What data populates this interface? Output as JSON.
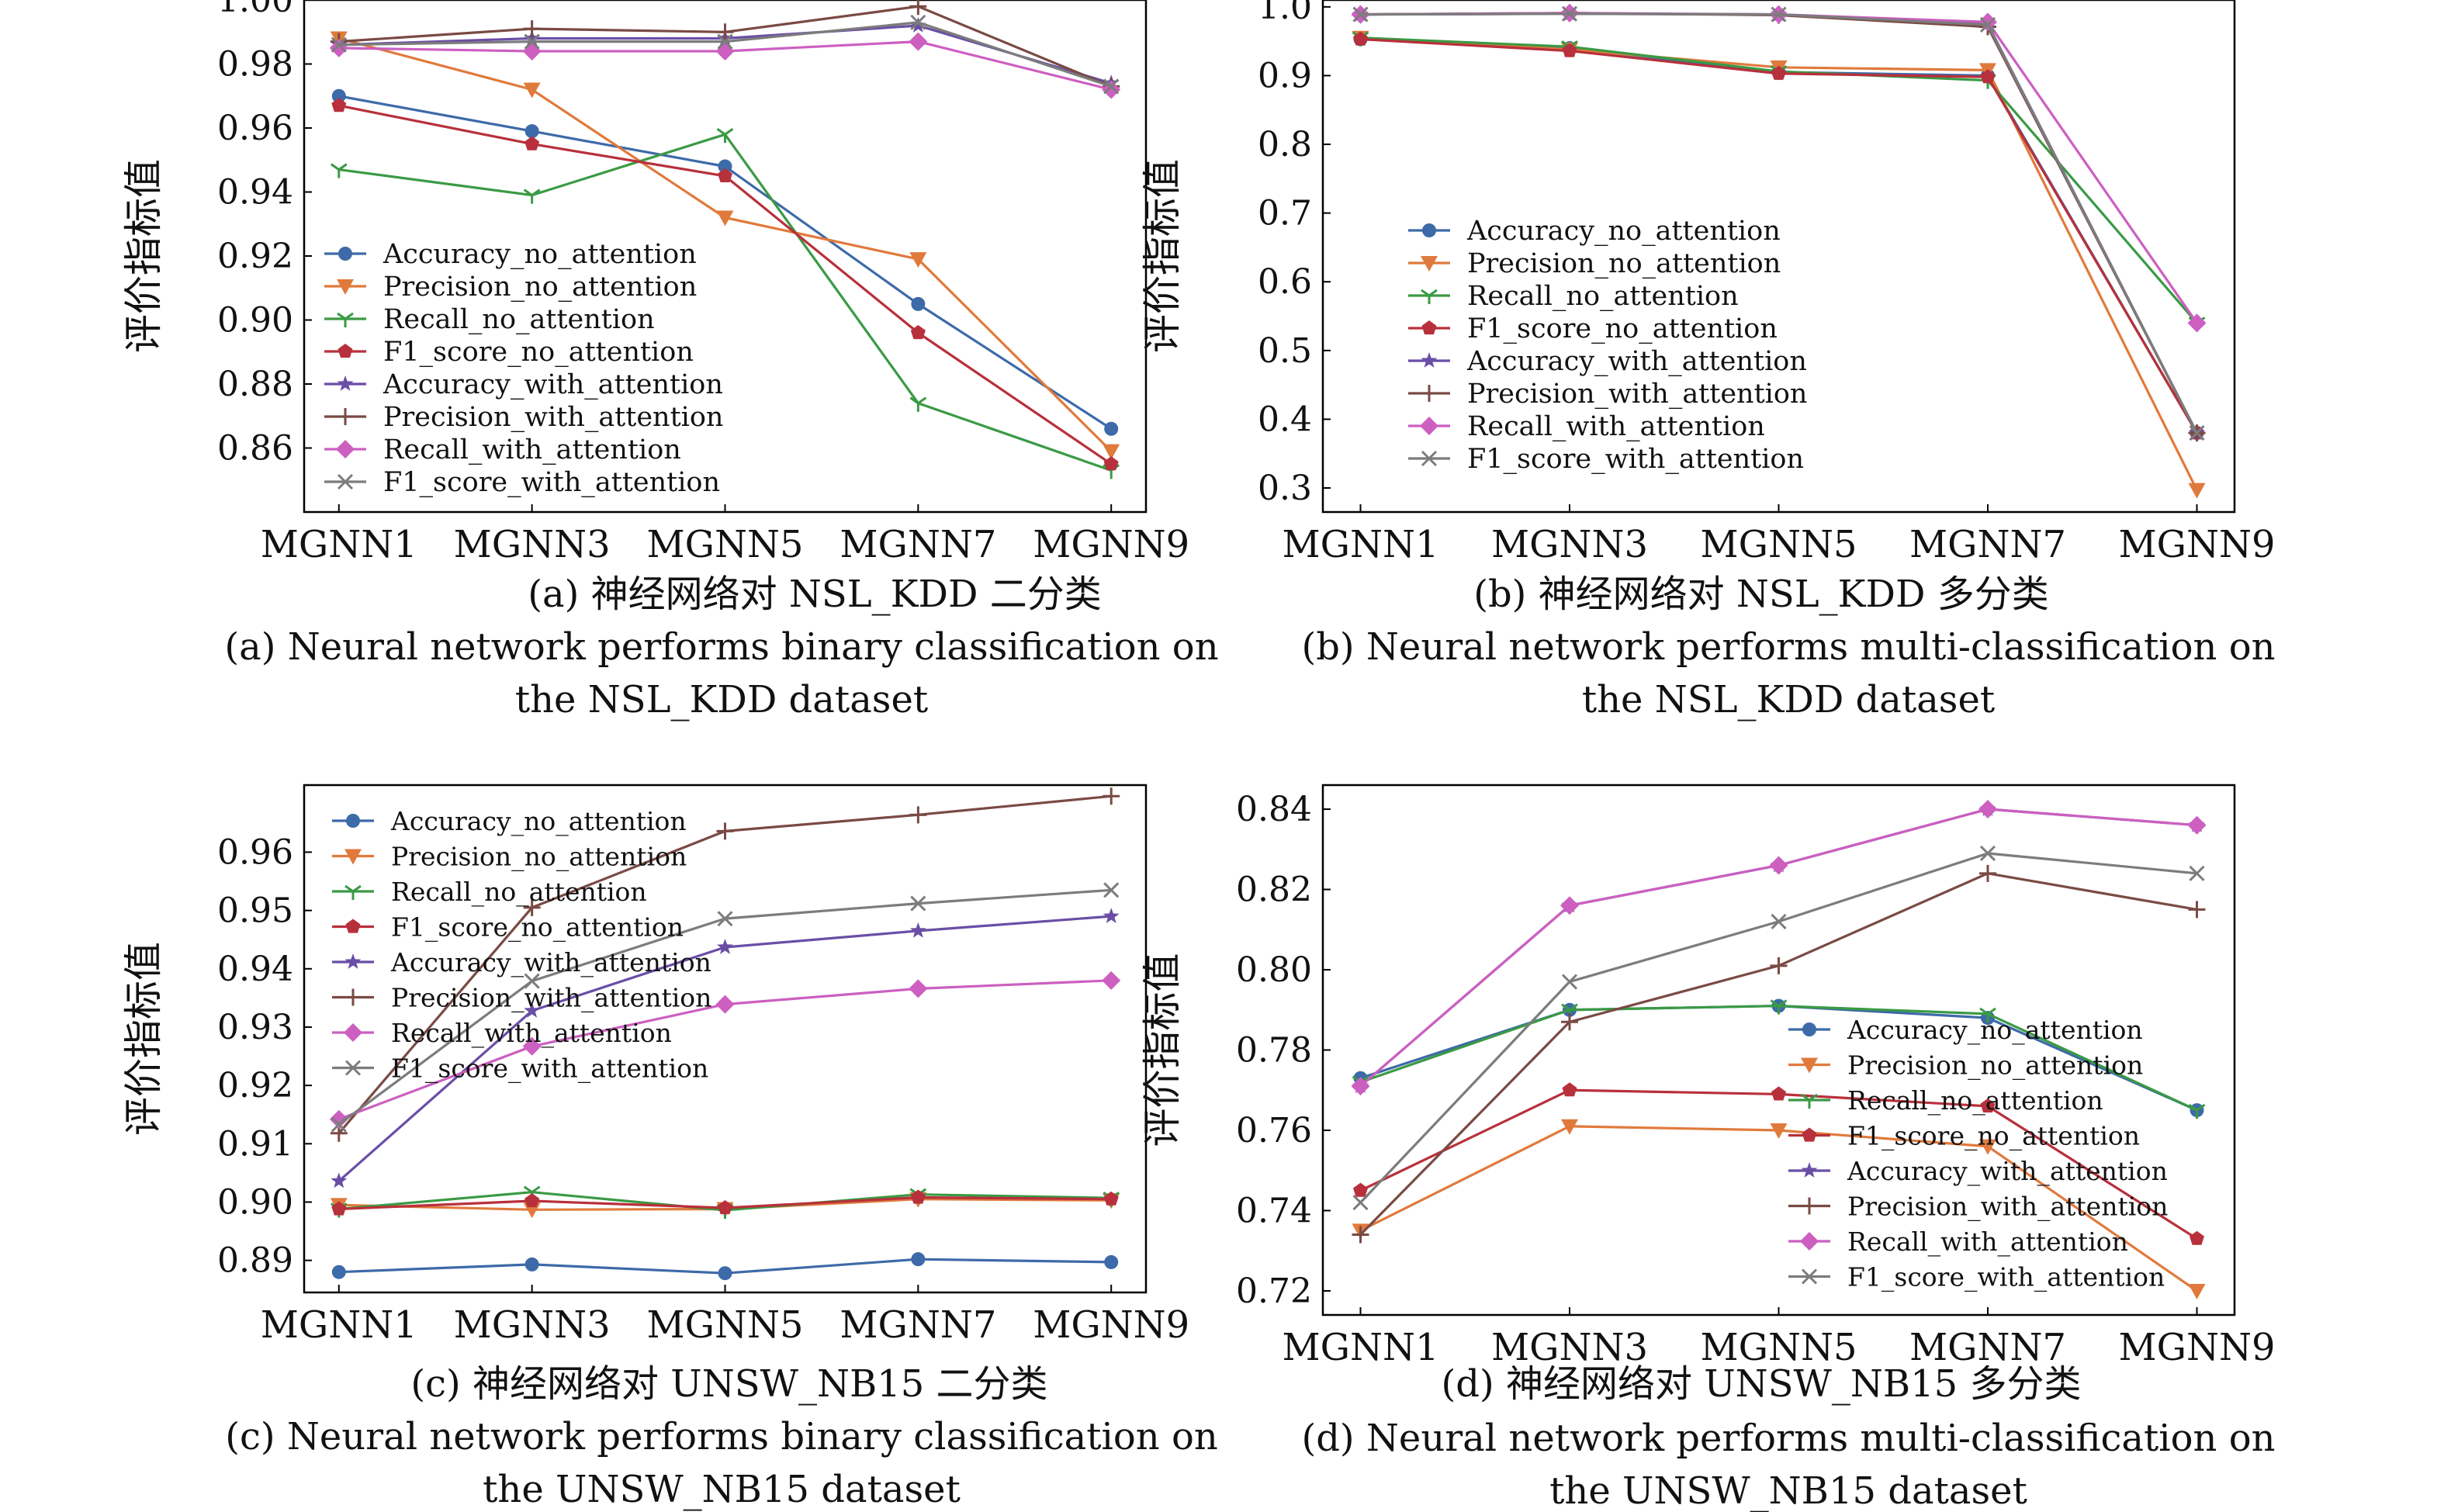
{
  "series_names": [
    "Accuracy_no_attention",
    "Precision_no_attention",
    "Recall_no_attention",
    "F1_score_no_attention",
    "Accuracy_with_attention",
    "Precision_with_attention",
    "Recall_with_attention",
    "F1_score_with_attention"
  ],
  "colors": [
    "#3d6aa8",
    "#e07a3c",
    "#3a9a44",
    "#b8303b",
    "#6a4ea6",
    "#7a4a44",
    "#cc5fc0",
    "#7c7c7c"
  ],
  "markers": [
    "circle",
    "triangle-down",
    "tri-down",
    "pentagon",
    "star",
    "plus",
    "diamond",
    "x"
  ],
  "chart_data": [
    {
      "type": "line",
      "ylabel": "评价指标值",
      "categories": [
        "MGNN1",
        "MGNN3",
        "MGNN5",
        "MGNN7",
        "MGNN9"
      ],
      "ylim": [
        0.84,
        1.0
      ],
      "yticks": [
        "1.00",
        "0.98",
        "0.96",
        "0.94",
        "0.92",
        "0.90",
        "0.88",
        "0.86"
      ],
      "legend_placement": "center-left",
      "caption_cn": "(a) 神经网络对 NSL_KDD 二分类",
      "caption_en_1": "(a) Neural network performs binary classification on",
      "caption_en_2": "the NSL_KDD dataset",
      "series": [
        {
          "name": "Accuracy_no_attention",
          "values": [
            0.97,
            0.959,
            0.948,
            0.905,
            0.866
          ]
        },
        {
          "name": "Precision_no_attention",
          "values": [
            0.988,
            0.972,
            0.932,
            0.919,
            0.859
          ]
        },
        {
          "name": "Recall_no_attention",
          "values": [
            0.947,
            0.939,
            0.958,
            0.874,
            0.853
          ]
        },
        {
          "name": "F1_score_no_attention",
          "values": [
            0.967,
            0.955,
            0.945,
            0.896,
            0.855
          ]
        },
        {
          "name": "Accuracy_with_attention",
          "values": [
            0.986,
            0.988,
            0.988,
            0.992,
            0.974
          ]
        },
        {
          "name": "Precision_with_attention",
          "values": [
            0.987,
            0.991,
            0.99,
            0.998,
            0.973
          ]
        },
        {
          "name": "Recall_with_attention",
          "values": [
            0.985,
            0.984,
            0.984,
            0.987,
            0.972
          ]
        },
        {
          "name": "F1_score_with_attention",
          "values": [
            0.986,
            0.987,
            0.987,
            0.993,
            0.973
          ]
        }
      ]
    },
    {
      "type": "line",
      "ylabel": "评价指标值",
      "categories": [
        "MGNN1",
        "MGNN3",
        "MGNN5",
        "MGNN7",
        "MGNN9"
      ],
      "ylim": [
        0.265,
        1.01
      ],
      "yticks": [
        "1.0",
        "0.9",
        "0.8",
        "0.7",
        "0.6",
        "0.5",
        "0.4",
        "0.3"
      ],
      "legend_placement": "center-left",
      "caption_cn": "(b) 神经网络对 NSL_KDD 多分类",
      "caption_en_1": "(b) Neural network performs multi-classification on",
      "caption_en_2": "the NSL_KDD dataset",
      "series": [
        {
          "name": "Accuracy_no_attention",
          "values": [
            0.953,
            0.94,
            0.905,
            0.9,
            0.38
          ]
        },
        {
          "name": "Precision_no_attention",
          "values": [
            0.955,
            0.938,
            0.912,
            0.908,
            0.297
          ]
        },
        {
          "name": "Recall_no_attention",
          "values": [
            0.955,
            0.942,
            0.906,
            0.893,
            0.54
          ]
        },
        {
          "name": "F1_score_no_attention",
          "values": [
            0.953,
            0.936,
            0.903,
            0.898,
            0.38
          ]
        },
        {
          "name": "Accuracy_with_attention",
          "values": [
            0.989,
            0.99,
            0.989,
            0.975,
            0.38
          ]
        },
        {
          "name": "Precision_with_attention",
          "values": [
            0.989,
            0.991,
            0.988,
            0.971,
            0.38
          ]
        },
        {
          "name": "Recall_with_attention",
          "values": [
            0.989,
            0.991,
            0.989,
            0.978,
            0.54
          ]
        },
        {
          "name": "F1_score_with_attention",
          "values": [
            0.989,
            0.99,
            0.989,
            0.974,
            0.38
          ]
        }
      ]
    },
    {
      "type": "line",
      "ylabel": "评价指标值",
      "categories": [
        "MGNN1",
        "MGNN3",
        "MGNN5",
        "MGNN7",
        "MGNN9"
      ],
      "ylim": [
        0.8845,
        0.9715
      ],
      "yticks": [
        "0.96",
        "0.95",
        "0.94",
        "0.93",
        "0.92",
        "0.91",
        "0.90",
        "0.89"
      ],
      "legend_placement": "upper-left",
      "caption_cn": "(c) 神经网络对 UNSW_NB15 二分类",
      "caption_en_1": "(c) Neural network performs binary classification on",
      "caption_en_2": "the UNSW_NB15 dataset",
      "series": [
        {
          "name": "Accuracy_no_attention",
          "values": [
            0.888,
            0.8893,
            0.8878,
            0.8902,
            0.8897
          ]
        },
        {
          "name": "Precision_no_attention",
          "values": [
            0.8995,
            0.8987,
            0.8988,
            0.9005,
            0.9003
          ]
        },
        {
          "name": "Recall_no_attention",
          "values": [
            0.8988,
            0.9017,
            0.8986,
            0.9013,
            0.9007
          ]
        },
        {
          "name": "F1_score_no_attention",
          "values": [
            0.8988,
            0.9002,
            0.899,
            0.9008,
            0.9005
          ]
        },
        {
          "name": "Accuracy_with_attention",
          "values": [
            0.9036,
            0.9328,
            0.9437,
            0.9465,
            0.949
          ]
        },
        {
          "name": "Precision_with_attention",
          "values": [
            0.9118,
            0.9505,
            0.9636,
            0.9664,
            0.9696
          ]
        },
        {
          "name": "Recall_with_attention",
          "values": [
            0.9142,
            0.9267,
            0.9339,
            0.9366,
            0.938
          ]
        },
        {
          "name": "F1_score_with_attention",
          "values": [
            0.9133,
            0.9379,
            0.9486,
            0.9512,
            0.9535
          ]
        }
      ]
    },
    {
      "type": "line",
      "ylabel": "评价指标值",
      "categories": [
        "MGNN1",
        "MGNN3",
        "MGNN5",
        "MGNN7",
        "MGNN9"
      ],
      "ylim": [
        0.714,
        0.846
      ],
      "yticks": [
        "0.84",
        "0.82",
        "0.80",
        "0.78",
        "0.76",
        "0.74",
        "0.72"
      ],
      "legend_placement": "lower-right",
      "caption_cn": "(d) 神经网络对 UNSW_NB15 多分类",
      "caption_en_1": "(d) Neural network performs multi-classification on",
      "caption_en_2": "the UNSW_NB15 dataset",
      "series": [
        {
          "name": "Accuracy_no_attention",
          "values": [
            0.773,
            0.79,
            0.791,
            0.788,
            0.765
          ]
        },
        {
          "name": "Precision_no_attention",
          "values": [
            0.735,
            0.761,
            0.76,
            0.756,
            0.72
          ]
        },
        {
          "name": "Recall_no_attention",
          "values": [
            0.772,
            0.79,
            0.791,
            0.789,
            0.765
          ]
        },
        {
          "name": "F1_score_no_attention",
          "values": [
            0.745,
            0.77,
            0.769,
            0.766,
            0.733
          ]
        },
        {
          "name": "Accuracy_with_attention",
          "values": [
            0.771,
            0.816,
            0.826,
            0.84,
            0.836
          ]
        },
        {
          "name": "Precision_with_attention",
          "values": [
            0.734,
            0.787,
            0.801,
            0.824,
            0.815
          ]
        },
        {
          "name": "Recall_with_attention",
          "values": [
            0.771,
            0.816,
            0.826,
            0.84,
            0.836
          ]
        },
        {
          "name": "F1_score_with_attention",
          "values": [
            0.742,
            0.797,
            0.812,
            0.829,
            0.824
          ]
        }
      ]
    }
  ]
}
